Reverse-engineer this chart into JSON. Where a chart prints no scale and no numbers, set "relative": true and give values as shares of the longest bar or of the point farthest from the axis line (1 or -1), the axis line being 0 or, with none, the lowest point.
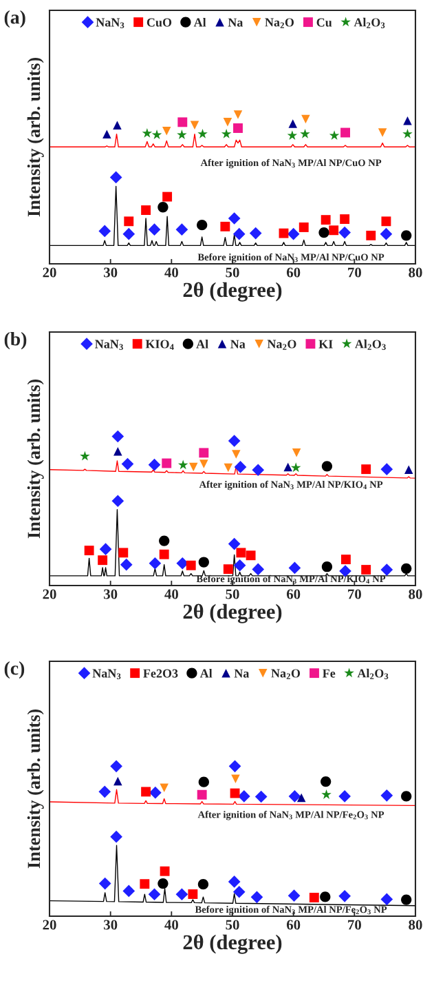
{
  "chart_data": [
    {
      "type": "line",
      "title": "(a)",
      "xlabel": "2θ (degree)",
      "ylabel": "Intensity (arb. units)",
      "relative": true,
      "xlim": [
        20,
        80
      ],
      "xticks": [
        20,
        30,
        40,
        50,
        60,
        70,
        80
      ],
      "legend": "top",
      "grid": false,
      "annotations": [
        "After ignition of NaN$_{3}$ MP/Al NP/CuO NP",
        "Before ignition of NaN$_{3}$ MP/Al NP/CuO NP"
      ],
      "series": [
        {
          "color": "#ff0000",
          "x": [
            20,
            29.1,
            29.4,
            29.7,
            30.7,
            31.0,
            31.3,
            35.7,
            36.0,
            36.3,
            36.7,
            37.0,
            37.3,
            38.9,
            39.2,
            39.5,
            41.5,
            41.8,
            42.1,
            43.5,
            43.8,
            44.1,
            44.7,
            45.0,
            45.3,
            48.7,
            49.0,
            49.3,
            50.3,
            50.6,
            50.9,
            51.2,
            51.5,
            59.6,
            59.9,
            60.2,
            61.7,
            62.0,
            62.3,
            68.2,
            68.5,
            68.8,
            74.3,
            74.6,
            74.9,
            78.4,
            78.7,
            79.0,
            80
          ],
          "values": [
            0.784,
            0.784,
            0.79,
            0.784,
            0.784,
            0.87,
            0.784,
            0.784,
            0.82,
            0.784,
            0.784,
            0.805,
            0.784,
            0.784,
            0.825,
            0.784,
            0.784,
            0.8,
            0.784,
            0.784,
            0.87,
            0.784,
            0.784,
            0.795,
            0.784,
            0.784,
            0.8,
            0.784,
            0.784,
            0.83,
            0.81,
            0.83,
            0.784,
            0.784,
            0.8,
            0.784,
            0.784,
            0.8,
            0.784,
            0.784,
            0.795,
            0.784,
            0.784,
            0.81,
            0.784,
            0.784,
            0.795,
            0.784,
            0.784
          ]
        },
        {
          "color": "#000000",
          "x": [
            20,
            28.8,
            29.05,
            29.3,
            30.55,
            30.9,
            31.25,
            32.75,
            33.0,
            33.25,
            35.55,
            35.8,
            36.05,
            36.55,
            36.8,
            37.05,
            37.25,
            37.5,
            37.75,
            39.05,
            39.3,
            39.55,
            41.45,
            41.7,
            41.95,
            44.75,
            45.0,
            45.25,
            48.55,
            48.8,
            49.05,
            50.05,
            50.3,
            50.55,
            50.95,
            51.2,
            51.45,
            53.55,
            53.8,
            54.05,
            58.15,
            58.4,
            58.65,
            61.45,
            61.7,
            61.95,
            65.05,
            65.3,
            65.55,
            66.35,
            66.6,
            66.85,
            68.15,
            68.4,
            68.65,
            72.45,
            72.7,
            72.95,
            74.95,
            75.2,
            75.45,
            78.25,
            78.5,
            78.75,
            80
          ],
          "values": [
            0.123,
            0.123,
            0.156,
            0.123,
            0.123,
            0.52,
            0.123,
            0.123,
            0.14,
            0.123,
            0.123,
            0.305,
            0.123,
            0.123,
            0.156,
            0.123,
            0.123,
            0.15,
            0.123,
            0.123,
            0.318,
            0.123,
            0.123,
            0.15,
            0.123,
            0.123,
            0.18,
            0.123,
            0.123,
            0.177,
            0.123,
            0.123,
            0.196,
            0.123,
            0.123,
            0.144,
            0.123,
            0.123,
            0.14,
            0.123,
            0.123,
            0.144,
            0.123,
            0.123,
            0.16,
            0.123,
            0.123,
            0.144,
            0.123,
            0.123,
            0.15,
            0.123,
            0.123,
            0.15,
            0.123,
            0.123,
            0.13,
            0.123,
            0.123,
            0.14,
            0.123,
            0.123,
            0.144,
            0.123,
            0.123
          ]
        },
        {
          "type": "scatter",
          "name": "NaN$_{3}$",
          "color": "#1f1fff",
          "marker": "diamond",
          "x": [
            29.05,
            30.9,
            33.0,
            37.2,
            41.7,
            50.3,
            51.1,
            53.8,
            60.0,
            68.4,
            75.2
          ],
          "values": [
            0.22,
            0.58,
            0.2,
            0.23,
            0.23,
            0.305,
            0.2,
            0.205,
            0.2,
            0.21,
            0.2
          ]
        },
        {
          "type": "scatter",
          "name": "CuO",
          "color": "#ff0000",
          "marker": "square",
          "x": [
            33.0,
            35.8,
            39.3,
            48.8,
            58.4,
            61.7,
            65.3,
            66.6,
            68.4,
            72.7,
            75.2
          ],
          "values": [
            0.285,
            0.36,
            0.45,
            0.25,
            0.205,
            0.245,
            0.295,
            0.225,
            0.3,
            0.19,
            0.285
          ]
        },
        {
          "type": "scatter",
          "name": "Al",
          "color": "#000000",
          "marker": "circle",
          "x": [
            38.6,
            45.0,
            65.0,
            78.5
          ],
          "values": [
            0.38,
            0.26,
            0.21,
            0.19
          ]
        },
        {
          "type": "scatter",
          "name": "Na",
          "color": "#00008b",
          "marker": "triangle",
          "x": [
            29.4,
            31.1,
            59.9,
            78.7
          ],
          "values": [
            0.87,
            0.93,
            0.94,
            0.96
          ]
        },
        {
          "type": "scatter",
          "name": "Na$_{2}$O",
          "color": "#ff8c1a",
          "marker": "triangle_down",
          "x": [
            39.2,
            43.8,
            49.2,
            50.9,
            62.0,
            74.6
          ],
          "values": [
            0.89,
            0.93,
            0.95,
            1.0,
            0.97,
            0.88
          ]
        },
        {
          "type": "scatter",
          "name": "Cu",
          "color": "#f0168c",
          "marker": "square",
          "x": [
            41.8,
            50.9,
            68.5
          ],
          "values": [
            0.95,
            0.91,
            0.88
          ]
        },
        {
          "type": "scatter",
          "name": "Al$_{2}$O$_{3}$",
          "color": "#1a8a1a",
          "marker": "star",
          "x": [
            36.0,
            37.6,
            41.7,
            45.1,
            49.0,
            59.8,
            61.9,
            66.7,
            78.7
          ],
          "values": [
            0.875,
            0.865,
            0.865,
            0.87,
            0.87,
            0.86,
            0.87,
            0.86,
            0.87
          ]
        }
      ]
    },
    {
      "type": "line",
      "title": "(b)",
      "xlabel": "2θ (degree)",
      "ylabel": "Intensity (arb. units)",
      "relative": true,
      "xlim": [
        20,
        80
      ],
      "xticks": [
        20,
        30,
        40,
        50,
        60,
        70,
        80
      ],
      "legend": "top",
      "grid": false,
      "annotations": [
        "After ignition of NaN$_{3}$ MP/Al NP/KIO$_{4}$ NP",
        "Before ignition of NaN$_{3}$ MP/Al NP/KIO$_{4}$ NP"
      ],
      "series": [
        {
          "color": "#ff0000",
          "x": [
            20,
            25.55,
            25.8,
            26.05,
            30.85,
            31.1,
            31.35,
            36.75,
            37.0,
            37.25,
            38.95,
            39.2,
            39.45,
            41.65,
            41.9,
            42.15,
            45.05,
            45.3,
            45.55,
            50.35,
            50.6,
            50.85,
            58.85,
            59.1,
            59.35,
            60.15,
            60.4,
            60.65,
            65.25,
            65.5,
            65.75,
            78.65,
            78.9,
            79.15,
            80
          ],
          "values": [
            0.777,
            0.772,
            0.78,
            0.772,
            0.766,
            0.836,
            0.766,
            0.761,
            0.775,
            0.761,
            0.759,
            0.77,
            0.759,
            0.756,
            0.77,
            0.756,
            0.753,
            0.765,
            0.753,
            0.748,
            0.8,
            0.748,
            0.74,
            0.75,
            0.74,
            0.739,
            0.75,
            0.739,
            0.734,
            0.745,
            0.734,
            0.721,
            0.73,
            0.721,
            0.72
          ]
        },
        {
          "color": "#000000",
          "x": [
            20,
            26.25,
            26.5,
            26.75,
            28.5,
            28.7,
            28.9,
            29.0,
            29.2,
            29.4,
            30.75,
            31.1,
            31.45,
            37.05,
            37.3,
            37.55,
            38.55,
            38.8,
            39.05,
            41.55,
            41.8,
            42.05,
            42.95,
            43.2,
            43.45,
            45.05,
            45.3,
            45.55,
            50.05,
            50.3,
            50.55,
            50.95,
            51.2,
            51.45,
            52.75,
            53.0,
            53.25,
            65.25,
            65.5,
            65.75,
            78.25,
            78.5,
            78.75,
            80
          ],
          "values": [
            0.065,
            0.065,
            0.183,
            0.065,
            0.065,
            0.12,
            0.065,
            0.065,
            0.12,
            0.065,
            0.065,
            0.509,
            0.065,
            0.065,
            0.114,
            0.065,
            0.065,
            0.14,
            0.065,
            0.065,
            0.097,
            0.065,
            0.065,
            0.08,
            0.065,
            0.065,
            0.1,
            0.065,
            0.065,
            0.206,
            0.065,
            0.065,
            0.09,
            0.065,
            0.065,
            0.08,
            0.065,
            0.065,
            0.08,
            0.065,
            0.065,
            0.08,
            0.065,
            0.065
          ]
        },
        {
          "type": "scatter",
          "name": "NaN$_{3}$",
          "color": "#1f1fff",
          "marker": "diamond",
          "x": [
            31.2,
            32.8,
            37.2,
            50.3,
            51.3,
            54.2,
            75.3,
            29.2,
            31.2,
            32.6,
            37.3,
            41.8,
            50.3,
            51.2,
            54.2,
            60.2,
            68.5,
            75.3
          ],
          "values": [
            1.0,
            0.815,
            0.81,
            0.97,
            0.795,
            0.775,
            0.78,
            0.244,
            0.567,
            0.14,
            0.149,
            0.149,
            0.279,
            0.135,
            0.109,
            0.118,
            0.097,
            0.106
          ]
        },
        {
          "type": "scatter",
          "name": "KIO$_{4}$",
          "color": "#ff0000",
          "marker": "square",
          "x": [
            71.9,
            26.5,
            28.7,
            32.1,
            38.8,
            43.2,
            49.3,
            51.4,
            53.0,
            68.6,
            71.9
          ],
          "values": [
            0.78,
            0.235,
            0.17,
            0.22,
            0.209,
            0.135,
            0.11,
            0.22,
            0.202,
            0.175,
            0.106
          ]
        },
        {
          "type": "scatter",
          "name": "Al",
          "color": "#000000",
          "marker": "circle",
          "x": [
            65.5,
            38.8,
            45.3,
            65.5,
            78.5
          ],
          "values": [
            0.8,
            0.3,
            0.157,
            0.126,
            0.114
          ]
        },
        {
          "type": "scatter",
          "name": "Na",
          "color": "#00008b",
          "marker": "triangle",
          "x": [
            31.2,
            59.1,
            78.9
          ],
          "values": [
            0.9,
            0.795,
            0.777
          ]
        },
        {
          "type": "scatter",
          "name": "Na$_{2}$O",
          "color": "#ff8c1a",
          "marker": "triangle_down",
          "x": [
            43.6,
            45.3,
            49.3,
            50.6,
            60.5
          ],
          "values": [
            0.795,
            0.815,
            0.79,
            0.88,
            0.89
          ]
        },
        {
          "type": "scatter",
          "name": "KI",
          "color": "#f0168c",
          "marker": "square",
          "x": [
            39.2,
            45.3
          ],
          "values": [
            0.82,
            0.89
          ]
        },
        {
          "type": "scatter",
          "name": "Al$_{2}$O$_{3}$",
          "color": "#1a8a1a",
          "marker": "star",
          "x": [
            25.8,
            41.9,
            60.4
          ],
          "values": [
            0.867,
            0.808,
            0.79
          ]
        }
      ]
    },
    {
      "type": "line",
      "title": "(c)",
      "xlabel": "2θ (degree)",
      "ylabel": "Intensity (arb. units)",
      "relative": true,
      "xlim": [
        20,
        80
      ],
      "xticks": [
        20,
        30,
        40,
        50,
        60,
        70,
        80
      ],
      "legend": "top",
      "grid": false,
      "annotations": [
        "After ignition of NaN$_{3}$ MP/Al NP/Fe$_{2}$O$_{3}$ NP",
        "Before ignition of NaN$_{3}$ MP/Al NP/Fe$_{2}$O$_{3}$ NP"
      ],
      "series": [
        {
          "color": "#ff0000",
          "x": [
            20,
            30.7,
            31.0,
            31.3,
            35.55,
            35.8,
            36.05,
            38.55,
            38.8,
            39.05,
            44.75,
            45.0,
            45.25,
            50.15,
            50.4,
            50.65,
            80
          ],
          "values": [
            0.763,
            0.754,
            0.844,
            0.754,
            0.752,
            0.77,
            0.752,
            0.751,
            0.783,
            0.751,
            0.749,
            0.765,
            0.749,
            0.747,
            0.765,
            0.747,
            0.738
          ]
        },
        {
          "color": "#000000",
          "x": [
            20,
            28.85,
            29.1,
            29.35,
            30.65,
            31.0,
            31.35,
            35.35,
            35.6,
            35.85,
            38.65,
            38.9,
            39.15,
            43.25,
            43.5,
            43.75,
            44.95,
            45.2,
            45.45,
            50.05,
            50.3,
            50.55,
            80
          ],
          "values": [
            0.103,
            0.098,
            0.157,
            0.098,
            0.097,
            0.472,
            0.097,
            0.094,
            0.146,
            0.094,
            0.092,
            0.184,
            0.092,
            0.09,
            0.11,
            0.09,
            0.089,
            0.128,
            0.089,
            0.086,
            0.15,
            0.086,
            0.07
          ]
        },
        {
          "type": "scatter",
          "name": "NaN$_{3}$",
          "color": "#1f1fff",
          "marker": "diamond",
          "x": [
            30.95,
            29.05,
            37.35,
            50.4,
            51.9,
            54.7,
            60.2,
            68.4,
            75.3,
            30.95,
            29.1,
            33.0,
            37.2,
            41.7,
            50.3,
            51.1,
            54.0,
            60.1,
            68.4,
            75.3
          ],
          "values": [
            1.0,
            0.83,
            0.824,
            1.0,
            0.8,
            0.797,
            0.8,
            0.8,
            0.805,
            0.53,
            0.218,
            0.168,
            0.146,
            0.146,
            0.23,
            0.162,
            0.127,
            0.137,
            0.134,
            0.113
          ]
        },
        {
          "type": "scatter",
          "name": "Fe2O3",
          "color": "#ff0000",
          "marker": "square",
          "x": [
            35.8,
            50.4,
            35.6,
            38.9,
            43.5,
            63.4
          ],
          "values": [
            0.83,
            0.82,
            0.215,
            0.3,
            0.147,
            0.124
          ]
        },
        {
          "type": "scatter",
          "name": "Al",
          "color": "#000000",
          "marker": "circle",
          "x": [
            45.3,
            65.3,
            78.5,
            38.6,
            45.2,
            65.2,
            78.5
          ],
          "values": [
            0.895,
            0.898,
            0.8,
            0.218,
            0.213,
            0.129,
            0.11
          ]
        },
        {
          "type": "scatter",
          "name": "Na",
          "color": "#00008b",
          "marker": "triangle",
          "x": [
            31.2,
            61.3
          ],
          "values": [
            0.9,
            0.79
          ]
        },
        {
          "type": "scatter",
          "name": "Na$_{2}$O",
          "color": "#ff8c1a",
          "marker": "triangle_down",
          "x": [
            38.8,
            50.5
          ],
          "values": [
            0.856,
            0.915
          ]
        },
        {
          "type": "scatter",
          "name": "Fe",
          "color": "#f0168c",
          "marker": "square",
          "x": [
            45.0
          ],
          "values": [
            0.81
          ]
        },
        {
          "type": "scatter",
          "name": "Al$_{2}$O$_{3}$",
          "color": "#1a8a1a",
          "marker": "star",
          "x": [
            65.4
          ],
          "values": [
            0.81
          ]
        }
      ]
    }
  ]
}
